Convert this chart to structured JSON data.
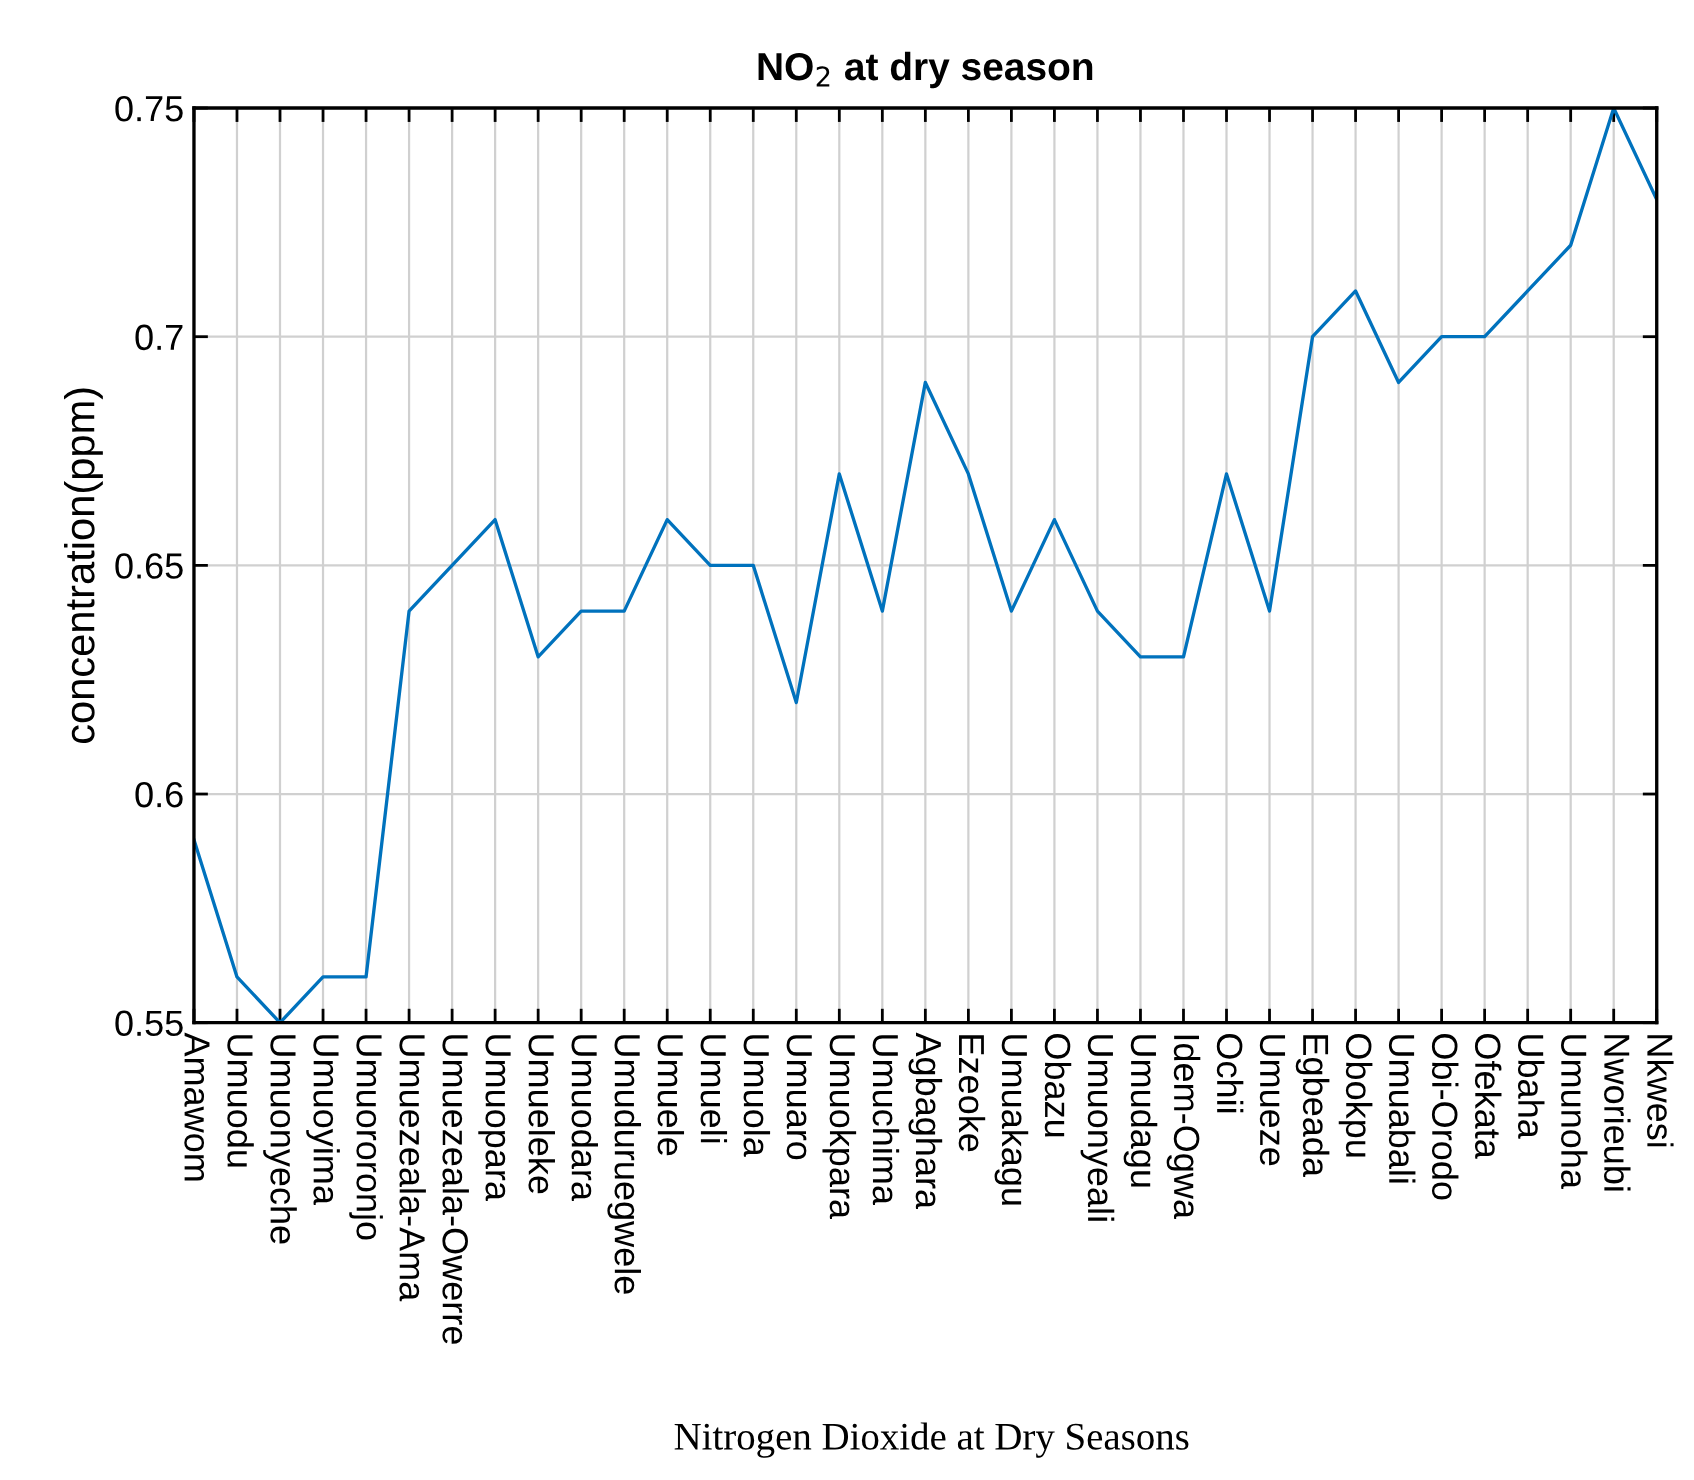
{
  "chart_data": {
    "type": "line",
    "title": "NO$_{2}$ at dry season",
    "ylabel": "concentration(ppm)",
    "xlabel": "Nitrogen Dioxide at Dry Seasons",
    "categories": [
      "Amawom",
      "Umuodu",
      "Umuonyeche",
      "Umuoyima",
      "Umuororonjo",
      "Umuezeala-Ama",
      "Umuezeala-Owerre",
      "Umuopara",
      "Umueleke",
      "Umuodara",
      "Umuduruegwele",
      "Umuele",
      "Umueli",
      "Umuola",
      "Umuaro",
      "Umuokpara",
      "Umuchima",
      "Agbaghara",
      "Ezeoke",
      "Umuakagu",
      "Obazu",
      "Umuonyeali",
      "Umudagu",
      "Idem-Ogwa",
      "Ochii",
      "Umueze",
      "Egbeada",
      "Obokpu",
      "Umuabali",
      "Obi-Orodo",
      "Ofekata",
      "Ubaha",
      "Umunoha",
      "Nworieubi",
      "Nkwesi"
    ],
    "series": [
      {
        "color": "#0072bd",
        "values": [
          0.59,
          0.56,
          0.55,
          0.56,
          0.56,
          0.64,
          0.65,
          0.66,
          0.63,
          0.64,
          0.64,
          0.66,
          0.65,
          0.65,
          0.62,
          0.67,
          0.64,
          0.69,
          0.67,
          0.64,
          0.66,
          0.64,
          0.63,
          0.63,
          0.67,
          0.64,
          0.7,
          0.71,
          0.69,
          0.7,
          0.7,
          0.71,
          0.72,
          0.75,
          0.73
        ]
      }
    ],
    "ylim": [
      0.55,
      0.75
    ],
    "yticks": [
      0.55,
      0.6,
      0.65,
      0.7,
      0.75
    ],
    "grid": true,
    "marker": "none",
    "line_style": "solid"
  }
}
